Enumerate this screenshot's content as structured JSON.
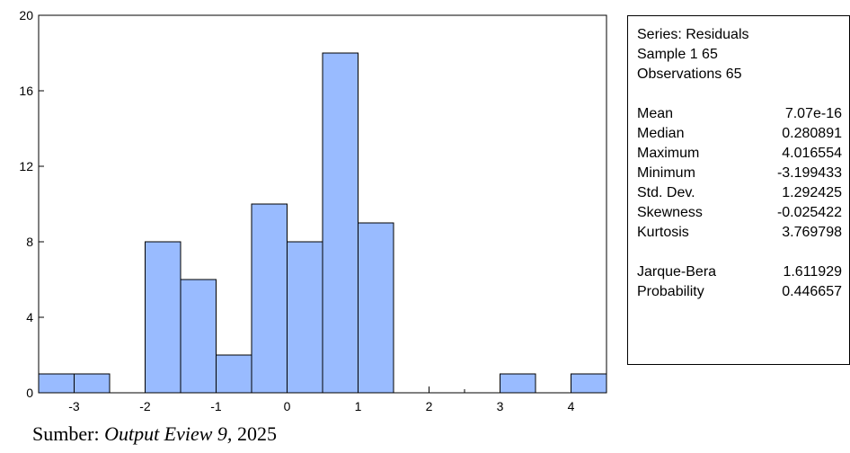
{
  "chart_data": {
    "type": "histogram",
    "bins": [
      {
        "x0": -3.5,
        "x1": -3.0,
        "count": 1
      },
      {
        "x0": -3.0,
        "x1": -2.5,
        "count": 1
      },
      {
        "x0": -2.5,
        "x1": -2.0,
        "count": 0
      },
      {
        "x0": -2.0,
        "x1": -1.5,
        "count": 8
      },
      {
        "x0": -1.5,
        "x1": -1.0,
        "count": 6
      },
      {
        "x0": -1.0,
        "x1": -0.5,
        "count": 2
      },
      {
        "x0": -0.5,
        "x1": 0.0,
        "count": 10
      },
      {
        "x0": 0.0,
        "x1": 0.5,
        "count": 8
      },
      {
        "x0": 0.5,
        "x1": 1.0,
        "count": 18
      },
      {
        "x0": 1.0,
        "x1": 1.5,
        "count": 9
      },
      {
        "x0": 1.5,
        "x1": 2.0,
        "count": 0
      },
      {
        "x0": 2.0,
        "x1": 2.5,
        "count": 0
      },
      {
        "x0": 2.5,
        "x1": 3.0,
        "count": 0
      },
      {
        "x0": 3.0,
        "x1": 3.5,
        "count": 1
      },
      {
        "x0": 3.5,
        "x1": 4.0,
        "count": 0
      },
      {
        "x0": 4.0,
        "x1": 4.5,
        "count": 1
      }
    ],
    "xlim": [
      -3.5,
      4.5
    ],
    "ylim": [
      0,
      20
    ],
    "x_ticks": [
      -3,
      -2,
      -1,
      0,
      1,
      2,
      3,
      4
    ],
    "y_ticks": [
      0,
      4,
      8,
      12,
      16,
      20
    ],
    "bar_color": "#99bbff",
    "grid": false
  },
  "stats": {
    "header": [
      "Series: Residuals",
      "Sample 1 65",
      "Observations 65"
    ],
    "moments": [
      {
        "label": "Mean",
        "value": "7.07e-16"
      },
      {
        "label": "Median",
        "value": "0.280891"
      },
      {
        "label": "Maximum",
        "value": "4.016554"
      },
      {
        "label": "Minimum",
        "value": "-3.199433"
      },
      {
        "label": "Std. Dev.",
        "value": "1.292425"
      },
      {
        "label": "Skewness",
        "value": "-0.025422"
      },
      {
        "label": "Kurtosis",
        "value": "3.769798"
      }
    ],
    "tests": [
      {
        "label": "Jarque-Bera",
        "value": "1.611929"
      },
      {
        "label": "Probability",
        "value": "0.446657"
      }
    ]
  },
  "source": {
    "prefix": "Sumber: ",
    "emphasis": "Output Eview 9,",
    "suffix": " 2025"
  }
}
